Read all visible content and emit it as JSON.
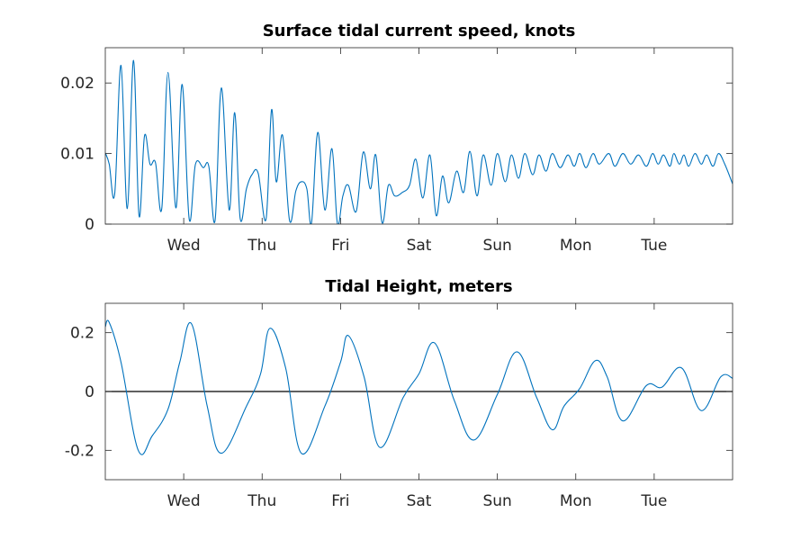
{
  "chart_data": [
    {
      "type": "line",
      "title": "Surface tidal current speed, knots",
      "xlabel": "",
      "ylabel": "",
      "x_unit": "days",
      "xlim": [
        0,
        8
      ],
      "ylim": [
        0,
        0.025
      ],
      "yticks": [
        0,
        0.01,
        0.02
      ],
      "ytick_labels": [
        "0",
        "0.01",
        "0.02"
      ],
      "xticks": [
        1,
        2,
        3,
        4,
        5,
        6,
        7
      ],
      "xtick_labels": [
        "Wed",
        "Thu",
        "Fri",
        "Sat",
        "Sun",
        "Mon",
        "Tue"
      ],
      "grid": false,
      "legend": "none",
      "zero_line": false,
      "line_color": "#0072BD",
      "series": [
        {
          "x": [
            0.0,
            0.05,
            0.12,
            0.2,
            0.28,
            0.36,
            0.43,
            0.5,
            0.57,
            0.64,
            0.72,
            0.8,
            0.9,
            0.98,
            1.07,
            1.15,
            1.25,
            1.32,
            1.4,
            1.48,
            1.58,
            1.65,
            1.72,
            1.8,
            1.87,
            1.95,
            2.05,
            2.12,
            2.18,
            2.26,
            2.35,
            2.43,
            2.5,
            2.57,
            2.63,
            2.71,
            2.8,
            2.89,
            2.96,
            3.03,
            3.1,
            3.2,
            3.29,
            3.38,
            3.45,
            3.53,
            3.61,
            3.69,
            3.79,
            3.88,
            3.96,
            4.05,
            4.14,
            4.22,
            4.3,
            4.38,
            4.48,
            4.57,
            4.65,
            4.74,
            4.82,
            4.92,
            5.0,
            5.1,
            5.18,
            5.27,
            5.35,
            5.45,
            5.53,
            5.62,
            5.7,
            5.8,
            5.9,
            5.98,
            6.05,
            6.13,
            6.22,
            6.3,
            6.42,
            6.5,
            6.6,
            6.7,
            6.8,
            6.9,
            6.98,
            7.05,
            7.12,
            7.2,
            7.25,
            7.32,
            7.38,
            7.44,
            7.52,
            7.6,
            7.67,
            7.75,
            7.82,
            7.9,
            8.0
          ],
          "y": [
            0.0101,
            0.0085,
            0.0043,
            0.0225,
            0.0022,
            0.0232,
            0.0012,
            0.0125,
            0.0085,
            0.0087,
            0.0022,
            0.0215,
            0.0023,
            0.0198,
            0.0007,
            0.0085,
            0.008,
            0.0082,
            0.0005,
            0.0193,
            0.002,
            0.0158,
            0.0008,
            0.005,
            0.007,
            0.0072,
            0.0007,
            0.0162,
            0.006,
            0.0126,
            0.0005,
            0.0047,
            0.006,
            0.005,
            0.0002,
            0.013,
            0.002,
            0.0107,
            0.0001,
            0.004,
            0.0055,
            0.0018,
            0.0102,
            0.005,
            0.0098,
            0.0002,
            0.0055,
            0.004,
            0.0045,
            0.0055,
            0.0092,
            0.0037,
            0.0098,
            0.0012,
            0.0068,
            0.003,
            0.0075,
            0.0045,
            0.0103,
            0.004,
            0.0098,
            0.0055,
            0.01,
            0.006,
            0.0098,
            0.0065,
            0.01,
            0.007,
            0.0098,
            0.0075,
            0.01,
            0.008,
            0.0098,
            0.0082,
            0.01,
            0.008,
            0.01,
            0.0085,
            0.01,
            0.0082,
            0.01,
            0.0085,
            0.0098,
            0.0082,
            0.01,
            0.0085,
            0.0098,
            0.0082,
            0.01,
            0.0085,
            0.0098,
            0.0082,
            0.01,
            0.0085,
            0.0098,
            0.0082,
            0.01,
            0.0085,
            0.0057
          ]
        }
      ]
    },
    {
      "type": "line",
      "title": "Tidal Height, meters",
      "xlabel": "",
      "ylabel": "",
      "x_unit": "days",
      "xlim": [
        0,
        8
      ],
      "ylim": [
        -0.3,
        0.3
      ],
      "yticks": [
        -0.2,
        0,
        0.2
      ],
      "ytick_labels": [
        "-0.2",
        "0",
        "0.2"
      ],
      "xticks": [
        1,
        2,
        3,
        4,
        5,
        6,
        7
      ],
      "xtick_labels": [
        "Wed",
        "Thu",
        "Fri",
        "Sat",
        "Sun",
        "Mon",
        "Tue"
      ],
      "grid": false,
      "legend": "none",
      "zero_line": true,
      "line_color": "#0072BD",
      "series": [
        {
          "x": [
            0.0,
            0.05,
            0.2,
            0.42,
            0.6,
            0.8,
            0.95,
            1.1,
            1.3,
            1.48,
            1.8,
            1.98,
            2.1,
            2.3,
            2.5,
            2.8,
            3.0,
            3.1,
            3.3,
            3.5,
            3.8,
            4.0,
            4.2,
            4.45,
            4.7,
            5.0,
            5.25,
            5.5,
            5.7,
            5.85,
            6.05,
            6.25,
            6.4,
            6.6,
            6.9,
            7.1,
            7.35,
            7.6,
            7.85,
            8.0
          ],
          "y": [
            0.22,
            0.235,
            0.1,
            -0.2,
            -0.15,
            -0.06,
            0.1,
            0.23,
            -0.05,
            -0.21,
            -0.05,
            0.06,
            0.215,
            0.08,
            -0.21,
            -0.05,
            0.1,
            0.19,
            0.05,
            -0.19,
            -0.02,
            0.06,
            0.165,
            -0.03,
            -0.165,
            -0.01,
            0.135,
            -0.02,
            -0.13,
            -0.05,
            0.01,
            0.105,
            0.05,
            -0.1,
            0.02,
            0.015,
            0.08,
            -0.065,
            0.05,
            0.045
          ]
        }
      ]
    }
  ]
}
